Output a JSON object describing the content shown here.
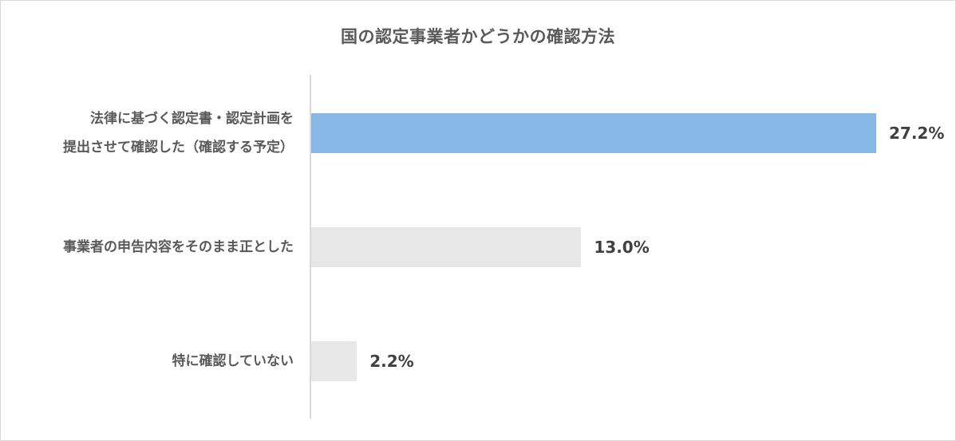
{
  "chart_data": {
    "type": "bar",
    "orientation": "horizontal",
    "title": "国の認定事業者かどうかの確認方法",
    "categories": [
      "法律に基づく認定書・認定計画を提出させて確認した（確認する予定）",
      "事業者の申告内容をそのまま正とした",
      "特に確認していない"
    ],
    "category_lines": [
      [
        "法律に基づく認定書・認定計画を",
        "提出させて確認した（確認する予定）"
      ],
      [
        "事業者の申告内容をそのまま正とした"
      ],
      [
        "特に確認していない"
      ]
    ],
    "values": [
      27.2,
      13.0,
      2.2
    ],
    "value_labels": [
      "27.2%",
      "13.0%",
      "2.2%"
    ],
    "unit": "%",
    "xlabel": "",
    "ylabel": "",
    "grid": false,
    "legend": null,
    "colors": [
      "#85b8e6",
      "#e7e7e7",
      "#e7e7e7"
    ]
  }
}
